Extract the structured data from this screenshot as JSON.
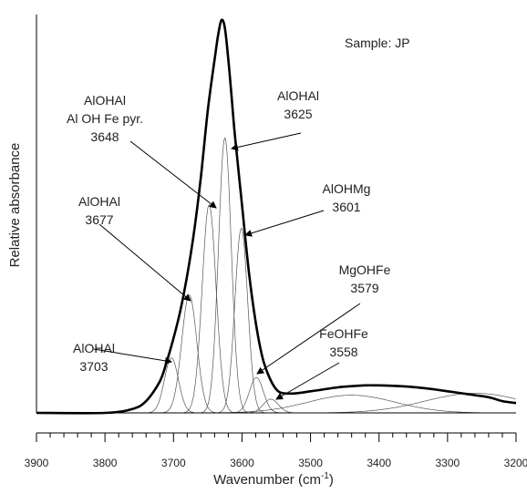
{
  "chart_data": {
    "type": "line",
    "title": "",
    "sample_label": "Sample:  JP",
    "xlabel": "Wavenumber (cm-1)",
    "xlabel_main": "Wavenumber (cm",
    "xlabel_sup": "-1",
    "xlabel_end": ")",
    "ylabel": "Relative absorbance",
    "xlim": [
      3900,
      3200
    ],
    "x_reversed": true,
    "x_ticks": [
      3900,
      3800,
      3700,
      3600,
      3500,
      3400,
      3300,
      3200
    ],
    "x_tick_labels": [
      "3900",
      "3800",
      "3700",
      "3600",
      "3500",
      "3400",
      "3300",
      "3200"
    ],
    "y_ticks_shown": false,
    "grid": false,
    "legend": "none",
    "series": [
      {
        "role": "envelope",
        "x": [
          3900,
          3800,
          3760,
          3740,
          3720,
          3710,
          3700,
          3690,
          3680,
          3670,
          3660,
          3650,
          3640,
          3635,
          3630,
          3625,
          3620,
          3615,
          3610,
          3600,
          3590,
          3580,
          3570,
          3560,
          3550,
          3540,
          3520,
          3500,
          3480,
          3460,
          3440,
          3420,
          3400,
          3380,
          3360,
          3340,
          3320,
          3300,
          3280,
          3260,
          3240,
          3220,
          3200
        ],
        "y": [
          0.0,
          0.0,
          0.01,
          0.03,
          0.08,
          0.13,
          0.19,
          0.26,
          0.35,
          0.46,
          0.6,
          0.77,
          0.9,
          0.96,
          1.0,
          0.98,
          0.9,
          0.8,
          0.7,
          0.53,
          0.36,
          0.23,
          0.14,
          0.09,
          0.06,
          0.05,
          0.05,
          0.055,
          0.06,
          0.065,
          0.068,
          0.07,
          0.07,
          0.069,
          0.067,
          0.064,
          0.06,
          0.055,
          0.05,
          0.045,
          0.04,
          0.03,
          0.025
        ]
      }
    ],
    "components": [
      {
        "name": "AlOHAl",
        "center": 3703,
        "height": 0.14,
        "fwhm": 24
      },
      {
        "name": "AlOHAl",
        "center": 3677,
        "height": 0.3,
        "fwhm": 26
      },
      {
        "name": "AlOHAl / Al OH Fe pyr.",
        "center": 3648,
        "height": 0.53,
        "fwhm": 24
      },
      {
        "name": "AlOHAl",
        "center": 3625,
        "height": 0.7,
        "fwhm": 22
      },
      {
        "name": "AlOHMg",
        "center": 3601,
        "height": 0.47,
        "fwhm": 22
      },
      {
        "name": "MgOHFe",
        "center": 3579,
        "height": 0.09,
        "fwhm": 24
      },
      {
        "name": "FeOHFe",
        "center": 3558,
        "height": 0.035,
        "fwhm": 26
      },
      {
        "name": "",
        "center": 3440,
        "height": 0.045,
        "fwhm": 150
      },
      {
        "name": "",
        "center": 3260,
        "height": 0.05,
        "fwhm": 170
      }
    ],
    "annotations": [
      {
        "lines": [
          "AlOHAl",
          "3703"
        ],
        "x": 3703
      },
      {
        "lines": [
          "AlOHAl",
          "3677"
        ],
        "x": 3677
      },
      {
        "lines": [
          "AlOHAl",
          "Al OH Fe pyr.",
          "3648"
        ],
        "x": 3648
      },
      {
        "lines": [
          "AlOHAl",
          "3625"
        ],
        "x": 3625
      },
      {
        "lines": [
          "AlOHMg",
          "3601"
        ],
        "x": 3601
      },
      {
        "lines": [
          "MgOHFe",
          "3579"
        ],
        "x": 3579
      },
      {
        "lines": [
          "FeOHFe",
          "3558"
        ],
        "x": 3558
      }
    ]
  }
}
